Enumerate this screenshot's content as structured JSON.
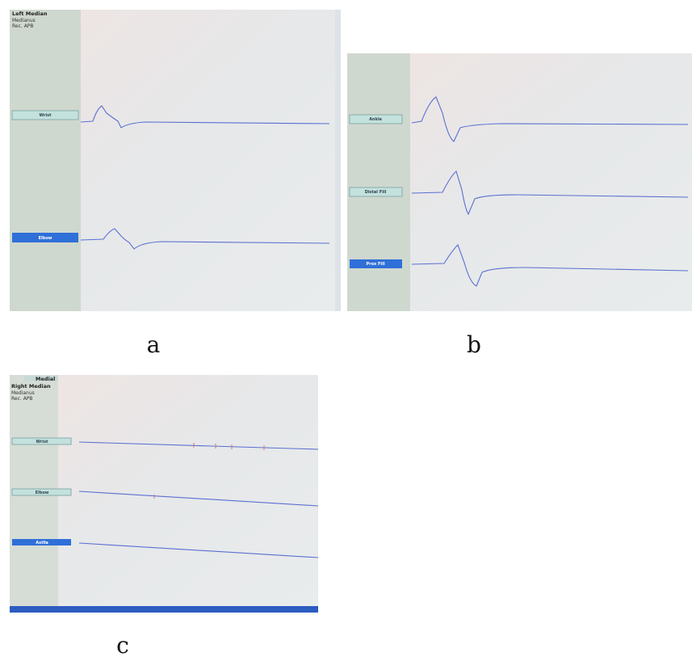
{
  "panels": [
    {
      "caption": "a",
      "header": [
        "Left Median",
        "Medianus",
        "Rec. APB"
      ],
      "labels": [
        "Wrist",
        "Elbow"
      ]
    },
    {
      "caption": "b",
      "labels": [
        "Ankle",
        "Distal Fill",
        "Prox Fill"
      ]
    },
    {
      "caption": "c",
      "header": [
        "Medial",
        "Right Median",
        "Medianus",
        "Rec. APB"
      ],
      "labels": [
        "Wrist",
        "Elbow",
        "Axilla"
      ]
    }
  ]
}
